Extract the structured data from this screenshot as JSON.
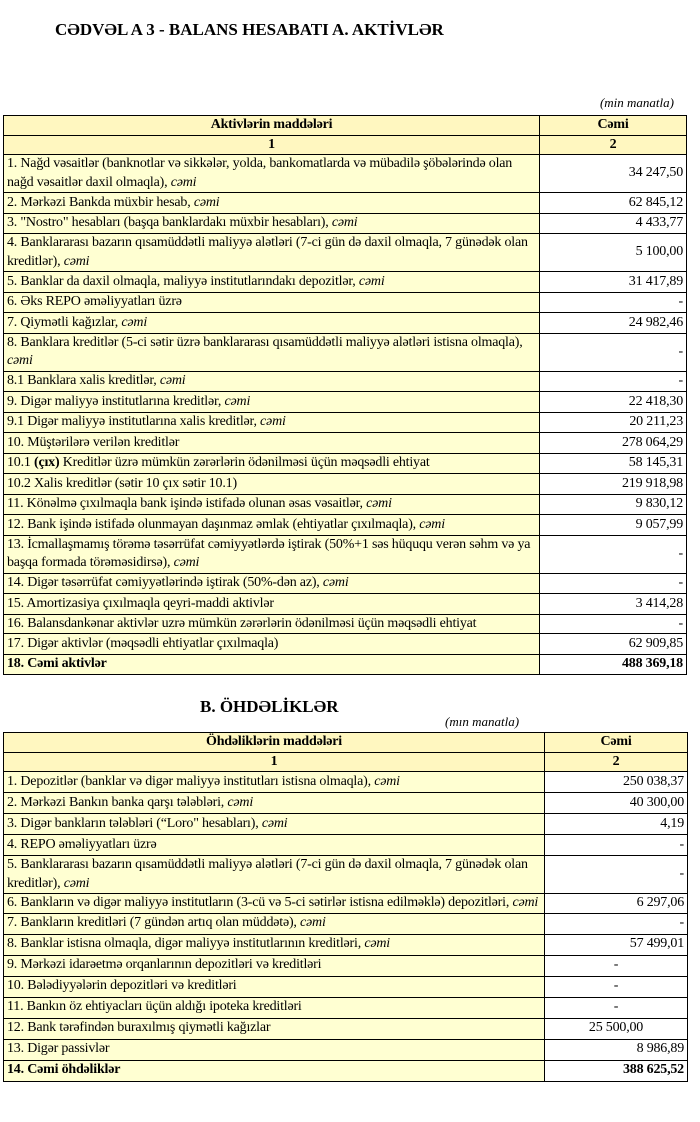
{
  "section_a": {
    "title": "CƏDVƏL A 3 - BALANS HESABATI A. AKTİVLƏR",
    "unit": "(min manatla)",
    "headers": [
      "Aktivlərin   maddələri",
      "Cəmi"
    ],
    "column_numbers": [
      "1",
      "2"
    ],
    "rows": [
      {
        "label": [
          [
            "1. Nağd vəsaitlər (banknotlar və sikkələr, yolda, bankomatlarda və mübadilə şöbələrində olan nağd vəsaitlər daxil olmaqla), ",
            ""
          ],
          [
            "cəmi",
            "i"
          ]
        ],
        "value": "34 247,50"
      },
      {
        "label": [
          [
            "2. Mərkəzi Bankda müxbir hesab, ",
            ""
          ],
          [
            "cəmi",
            "i"
          ]
        ],
        "value": "62 845,12"
      },
      {
        "label": [
          [
            "3. \"Nostro\" hesabları (başqa banklardakı müxbir hesabları), ",
            ""
          ],
          [
            "cəmi",
            "i"
          ]
        ],
        "value": "4 433,77"
      },
      {
        "label": [
          [
            "4. Banklararası bazarın qısamüddətli maliyyə alətləri (7-ci gün də daxil olmaqla, 7 günədək olan kreditlər), ",
            ""
          ],
          [
            "cəmi",
            "i"
          ]
        ],
        "value": "5 100,00"
      },
      {
        "label": [
          [
            "5. Banklar da daxil olmaqla, maliyyə institutlarındakı depozitlər, ",
            ""
          ],
          [
            "cəmi",
            "i"
          ]
        ],
        "value": "31 417,89"
      },
      {
        "label": [
          [
            "6. Əks REPO əməliyyatları üzrə",
            ""
          ]
        ],
        "value": "-"
      },
      {
        "label": [
          [
            "7. Qiymətli kağızlar, ",
            ""
          ],
          [
            "cəmi",
            "i"
          ]
        ],
        "value": "24 982,46"
      },
      {
        "label": [
          [
            "8. Banklara kreditlər (5-ci sətir üzrə banklararası qısamüddətli maliyyə alətləri istisna olmaqla), ",
            ""
          ],
          [
            "cəmi",
            "i"
          ]
        ],
        "value": "-"
      },
      {
        "label": [
          [
            "8.1 Banklara xalis kreditlər, ",
            ""
          ],
          [
            "cəmi",
            "i"
          ]
        ],
        "value": "-"
      },
      {
        "label": [
          [
            "9. Digər maliyyə institutlarına kreditlər, ",
            ""
          ],
          [
            "cəmi",
            "i"
          ]
        ],
        "value": "22 418,30"
      },
      {
        "label": [
          [
            "9.1 Digər maliyyə institutlarına xalis kreditlər, ",
            ""
          ],
          [
            "cəmi",
            "i"
          ]
        ],
        "value": "20 211,23"
      },
      {
        "label": [
          [
            "10. Müştərilərə verilən kreditlər",
            ""
          ]
        ],
        "value": "278 064,29"
      },
      {
        "label": [
          [
            "10.1 ",
            ""
          ],
          [
            "(çıx)",
            "b"
          ],
          [
            " Kreditlər üzrə mümkün zərərlərin ödənilməsi üçün məqsədli ehtiyat",
            ""
          ]
        ],
        "value": "58 145,31"
      },
      {
        "label": [
          [
            "10.2 Xalis kreditlər (sətir 10 çıx sətir 10.1)",
            ""
          ]
        ],
        "value": "219 918,98"
      },
      {
        "label": [
          [
            "11. Könəlmə çıxılmaqla bank işində istifadə olunan əsas vəsaitlər, ",
            ""
          ],
          [
            "cəmi",
            "i"
          ]
        ],
        "value": "9 830,12"
      },
      {
        "label": [
          [
            "12. Bank işində istifadə olunmayan daşınmaz əmlak (ehtiyatlar çıxılmaqla), ",
            ""
          ],
          [
            "cəmi",
            "i"
          ]
        ],
        "value": "9 057,99"
      },
      {
        "label": [
          [
            "13. İcmallaşmamış törəmə təsərrüfat cəmiyyətlərdə iştirak (50%+1 səs hüququ verən səhm və ya başqa formada törəməsidirsə), ",
            ""
          ],
          [
            "cəmi",
            "i"
          ]
        ],
        "value": "-"
      },
      {
        "label": [
          [
            "14. Digər təsərrüfat cəmiyyətlərində iştirak (50%-dən az), ",
            ""
          ],
          [
            "cəmi",
            "i"
          ]
        ],
        "value": "-"
      },
      {
        "label": [
          [
            "15. Amortizasiya çıxılmaqla qeyri-maddi aktivlər",
            ""
          ]
        ],
        "value": "3 414,28"
      },
      {
        "label": [
          [
            "16. Balansdankənar aktivlər uzrə mümkün zərərlərin ödənilməsi üçün məqsədli ehtiyat",
            ""
          ]
        ],
        "value": "-"
      },
      {
        "label": [
          [
            "17. Digər aktivlər (məqsədli ehtiyatlar çıxılmaqla)",
            ""
          ]
        ],
        "value": "62 909,85"
      },
      {
        "label": [
          [
            "18. Cəmi aktivlər",
            ""
          ]
        ],
        "value": "488 369,18",
        "total": true
      }
    ]
  },
  "section_b": {
    "title": "B. ÖHDƏLİKLƏR",
    "unit": "(mın manatla)",
    "headers": [
      "Öhdəliklərin maddələri",
      "Cəmi"
    ],
    "column_numbers": [
      "1",
      "2"
    ],
    "rows": [
      {
        "label": [
          [
            "1. Depozitlər (banklar və digər maliyyə institutları istisna olmaqla), ",
            ""
          ],
          [
            "cəmi",
            "i"
          ]
        ],
        "value": "250 038,37"
      },
      {
        "label": [
          [
            "2. Mərkəzi Bankın banka qarşı tələbləri, ",
            ""
          ],
          [
            "cəmi",
            "i"
          ]
        ],
        "value": "40 300,00"
      },
      {
        "label": [
          [
            "3. Digər bankların tələbləri (“Loro\" hesabları), ",
            ""
          ],
          [
            "cəmi",
            "i"
          ]
        ],
        "value": "4,19"
      },
      {
        "label": [
          [
            "4. REPO əməliyyatları  üzrə",
            ""
          ]
        ],
        "value": "-"
      },
      {
        "label": [
          [
            "5. Banklararası bazarın qısamüddətli maliyyə alətləri (7-ci gün də daxil olmaqla, 7 günədək olan kreditlər), ",
            ""
          ],
          [
            "cəmi",
            "i"
          ]
        ],
        "value": "-"
      },
      {
        "label": [
          [
            "6. Bankların və digər maliyyə institutların (3-cü və 5-ci sətirlər istisna edilməklə) depozitləri, ",
            ""
          ],
          [
            "cəmi",
            "i"
          ]
        ],
        "value": "6 297,06"
      },
      {
        "label": [
          [
            "7. Bankların kreditləri (7 gündən artıq olan müddətə), ",
            ""
          ],
          [
            "cəmi",
            "i"
          ]
        ],
        "value": "-"
      },
      {
        "label": [
          [
            "8. Banklar istisna olmaqla, digər maliyyə institutlarının kreditləri, ",
            ""
          ],
          [
            "cəmi",
            "i"
          ]
        ],
        "value": "57 499,01"
      },
      {
        "label": [
          [
            "9. Mərkəzi idarəetmə orqanlarının depozitləri və kreditləri",
            ""
          ]
        ],
        "value": "-"
      },
      {
        "label": [
          [
            "10. Bələdiyyələrin depozitləri və kreditləri",
            ""
          ]
        ],
        "value": "-"
      },
      {
        "label": [
          [
            "11. Bankın öz ehtiyacları üçün aldığı ipoteka kreditləri",
            ""
          ]
        ],
        "value": "-"
      },
      {
        "label": [
          [
            "12. Bank tərəfindən buraxılmış qiymətli kağızlar",
            ""
          ]
        ],
        "value": "25 500,00"
      },
      {
        "label": [
          [
            "13. Digər passivlər",
            ""
          ]
        ],
        "value": "8 986,89"
      },
      {
        "label": [
          [
            "14. Cəmi öhdəliklər",
            ""
          ]
        ],
        "value": "388 625,52",
        "total": true
      }
    ]
  }
}
